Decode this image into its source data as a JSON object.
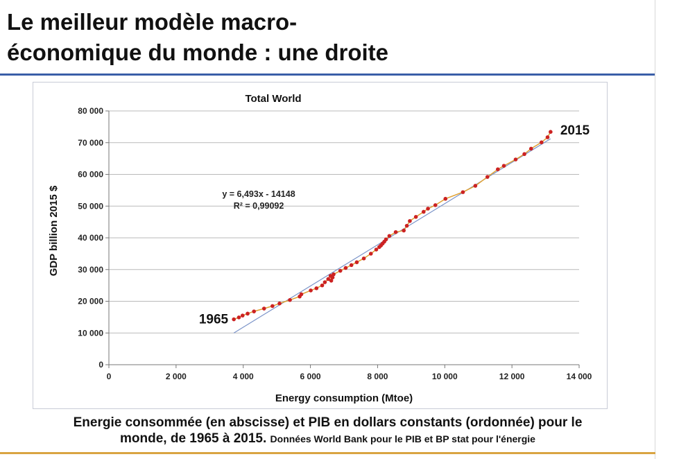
{
  "slide": {
    "title_line1": "Le meilleur modèle macro-",
    "title_line2": "économique du monde : une droite",
    "caption_line1": "Energie consommée (en abscisse) et PIB en dollars constants (ordonnée) pour le",
    "caption_line2": "monde, de 1965 à 2015.",
    "caption_source": "Données World Bank pour le PIB et BP stat pour l'énergie",
    "accent_color": "#3a5ea8",
    "bottom_rule_color": "#d9a441"
  },
  "chart_data": {
    "type": "scatter",
    "title": "Total World",
    "xlabel": "Energy consumption (Mtoe)",
    "ylabel": "GDP billion 2015 $",
    "xlim": [
      0,
      14000
    ],
    "ylim": [
      0,
      80000
    ],
    "x_ticks": [
      0,
      2000,
      4000,
      6000,
      8000,
      10000,
      12000,
      14000
    ],
    "y_ticks": [
      0,
      10000,
      20000,
      30000,
      40000,
      50000,
      60000,
      70000,
      80000
    ],
    "x_tick_labels": [
      "0",
      "2 000",
      "4 000",
      "6 000",
      "8 000",
      "10 000",
      "12 000",
      "14 000"
    ],
    "y_tick_labels": [
      "0",
      "10 000",
      "20 000",
      "30 000",
      "40 000",
      "50 000",
      "60 000",
      "70 000",
      "80 000"
    ],
    "grid": "horizontal",
    "marker_color": "#cc2222",
    "connector_color": "#e0a030",
    "trendline_color": "#7a93c8",
    "series": [
      {
        "x": [
          3720,
          3870,
          3980,
          4130,
          4320,
          4620,
          4870,
          5080,
          5390,
          5680,
          5730,
          6010,
          6180,
          6350,
          6430,
          6530,
          6600,
          6620,
          6660,
          6690,
          6890,
          7050,
          7220,
          7380,
          7590,
          7800,
          7960,
          8050,
          8100,
          8150,
          8200,
          8250,
          8350,
          8540,
          8780,
          8870,
          8960,
          9140,
          9370,
          9500,
          9720,
          10020,
          10540,
          10910,
          11270,
          11580,
          11760,
          12110,
          12370,
          12570,
          12880,
          13060,
          13150
        ],
        "y": [
          14300,
          14900,
          15500,
          16100,
          16800,
          17700,
          18500,
          19300,
          20400,
          21500,
          22200,
          23400,
          24100,
          25000,
          26000,
          27000,
          28000,
          26500,
          27500,
          28500,
          29600,
          30500,
          31400,
          32300,
          33500,
          35000,
          36300,
          37100,
          37600,
          38200,
          38800,
          39500,
          40600,
          41800,
          42300,
          43800,
          45300,
          46600,
          48200,
          49200,
          50300,
          52300,
          54400,
          56400,
          59200,
          61600,
          62700,
          64700,
          66400,
          68100,
          70100,
          71700,
          73400
        ]
      }
    ],
    "trendline": {
      "equation": "y = 6,493x - 14148",
      "r_squared": "R² = 0,99092",
      "slope": 6.493,
      "intercept": -14148,
      "x_start": 3720,
      "x_end": 13150
    },
    "annotations": [
      {
        "text": "1965",
        "x": 3720,
        "y": 14300
      },
      {
        "text": "2015",
        "x": 13150,
        "y": 73400
      }
    ]
  }
}
